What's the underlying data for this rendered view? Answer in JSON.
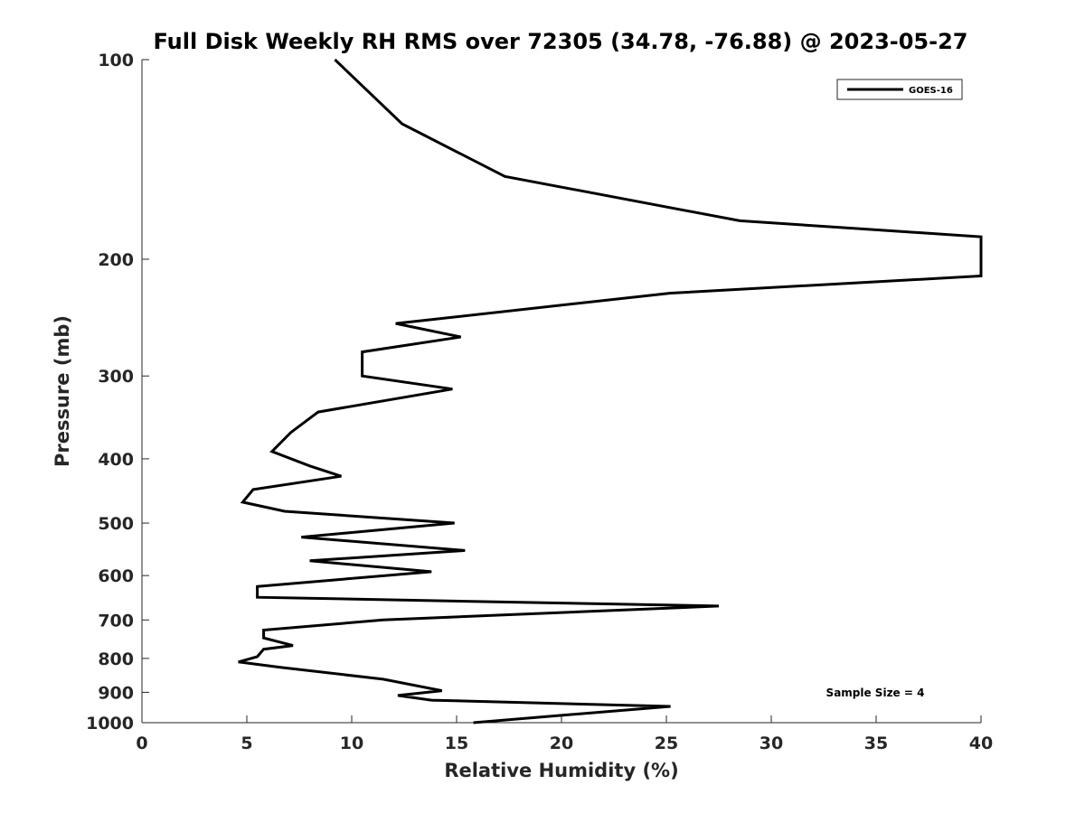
{
  "chart_data": {
    "type": "line",
    "title": "Full Disk Weekly RH RMS over 72305 (34.78, -76.88) @ 2023-05-27",
    "xlabel": "Relative Humidity (%)",
    "ylabel": "Pressure (mb)",
    "xlim": [
      0,
      40
    ],
    "ylim": [
      1000,
      100
    ],
    "y_scale": "log",
    "y_reversed": true,
    "x_ticks": [
      0,
      5,
      10,
      15,
      20,
      25,
      30,
      35,
      40
    ],
    "y_ticks": [
      100,
      200,
      300,
      400,
      500,
      600,
      700,
      800,
      900,
      1000
    ],
    "grid": false,
    "legend_position": "top-right",
    "annotation": "Sample Size = 4",
    "series": [
      {
        "name": "GOES-16",
        "color": "#000000",
        "points": [
          [
            9.2,
            100
          ],
          [
            12.4,
            125
          ],
          [
            17.3,
            150
          ],
          [
            28.5,
            175
          ],
          [
            40.0,
            185
          ],
          [
            40.0,
            212
          ],
          [
            25.2,
            225
          ],
          [
            12.1,
            250
          ],
          [
            15.2,
            262
          ],
          [
            10.5,
            276
          ],
          [
            10.5,
            300
          ],
          [
            14.8,
            314
          ],
          [
            8.4,
            340
          ],
          [
            7.1,
            365
          ],
          [
            6.2,
            390
          ],
          [
            8.0,
            410
          ],
          [
            9.5,
            425
          ],
          [
            5.3,
            445
          ],
          [
            4.8,
            465
          ],
          [
            6.8,
            480
          ],
          [
            14.9,
            500
          ],
          [
            7.6,
            525
          ],
          [
            15.4,
            550
          ],
          [
            8.0,
            570
          ],
          [
            13.8,
            592
          ],
          [
            5.5,
            623
          ],
          [
            5.5,
            647
          ],
          [
            27.5,
            667
          ],
          [
            11.5,
            700
          ],
          [
            5.8,
            725
          ],
          [
            5.8,
            745
          ],
          [
            7.2,
            765
          ],
          [
            5.8,
            775
          ],
          [
            5.5,
            795
          ],
          [
            4.6,
            810
          ],
          [
            6.6,
            825
          ],
          [
            11.5,
            860
          ],
          [
            14.3,
            895
          ],
          [
            12.2,
            910
          ],
          [
            13.8,
            925
          ],
          [
            25.2,
            945
          ],
          [
            20.0,
            975
          ],
          [
            15.8,
            1000
          ]
        ]
      }
    ]
  }
}
